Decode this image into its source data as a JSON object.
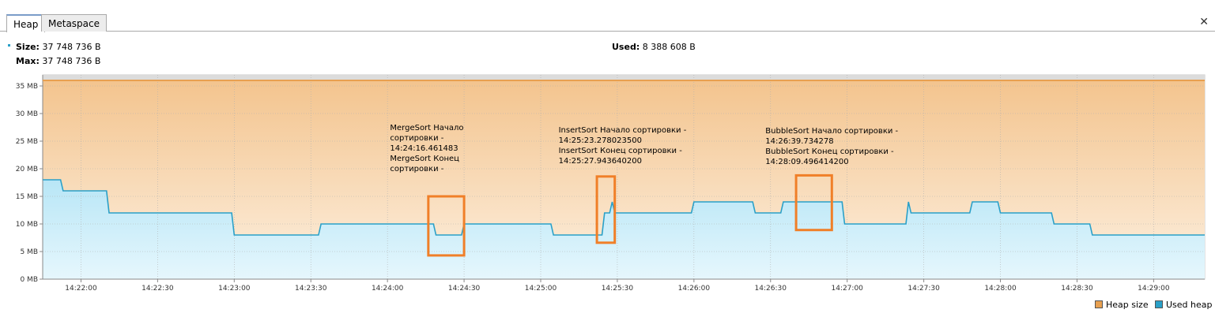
{
  "tabs": [
    {
      "label": "Heap",
      "active": true
    },
    {
      "label": "Metaspace",
      "active": false
    }
  ],
  "close_icon": "close-icon",
  "info": {
    "size_label": "Size:",
    "size_value": "37 748 736 B",
    "max_label": "Max:",
    "max_value": "37 748 736 B",
    "used_label": "Used:",
    "used_value": "8 388 608 B"
  },
  "legend": {
    "heap_size": "Heap size",
    "used_heap": "Used heap"
  },
  "colors": {
    "heap_size": "#e8a050",
    "used_heap": "#2aa0c8",
    "annotation_box": "#f07f28"
  },
  "chart_data": {
    "type": "area",
    "x_unit": "seconds",
    "y_unit": "MB",
    "xlim": [
      "14:21:45",
      "14:29:20"
    ],
    "ylim": [
      0,
      37
    ],
    "y_ticks": [
      {
        "v": 0,
        "label": "0 MB"
      },
      {
        "v": 5,
        "label": "5 MB"
      },
      {
        "v": 10,
        "label": "10 MB"
      },
      {
        "v": 15,
        "label": "15 MB"
      },
      {
        "v": 20,
        "label": "20 MB"
      },
      {
        "v": 25,
        "label": "25 MB"
      },
      {
        "v": 30,
        "label": "30 MB"
      },
      {
        "v": 35,
        "label": "35 MB"
      }
    ],
    "x_ticks": [
      "14:22:00",
      "14:22:30",
      "14:23:00",
      "14:23:30",
      "14:24:00",
      "14:24:30",
      "14:25:00",
      "14:25:30",
      "14:26:00",
      "14:26:30",
      "14:27:00",
      "14:27:30",
      "14:28:00",
      "14:28:30",
      "14:29:00"
    ],
    "grid": true,
    "legend_position": "bottom-right",
    "series": [
      {
        "name": "Heap size",
        "x": [
          "14:21:45",
          "14:29:20"
        ],
        "y": [
          36,
          36
        ]
      },
      {
        "name": "Used heap",
        "x": [
          "14:21:45",
          "14:21:52",
          "14:21:53",
          "14:22:10",
          "14:22:11",
          "14:22:28",
          "14:22:29",
          "14:22:59",
          "14:23:00",
          "14:23:33",
          "14:23:34",
          "14:24:18",
          "14:24:19",
          "14:24:29",
          "14:24:30",
          "14:25:04",
          "14:25:05",
          "14:25:24",
          "14:25:25",
          "14:25:27",
          "14:25:28",
          "14:25:29",
          "14:25:59",
          "14:26:00",
          "14:26:23",
          "14:26:24",
          "14:26:34",
          "14:26:35",
          "14:26:58",
          "14:26:59",
          "14:27:23",
          "14:27:24",
          "14:27:25",
          "14:27:48",
          "14:27:49",
          "14:27:59",
          "14:28:00",
          "14:28:20",
          "14:28:21",
          "14:28:35",
          "14:28:36",
          "14:29:20"
        ],
        "y": [
          18,
          18,
          16,
          16,
          12,
          12,
          12,
          12,
          8,
          8,
          10,
          10,
          8,
          8,
          10,
          10,
          8,
          8,
          12,
          12,
          14,
          12,
          12,
          14,
          14,
          12,
          12,
          14,
          14,
          10,
          10,
          14,
          12,
          12,
          14,
          14,
          12,
          12,
          10,
          10,
          8,
          8
        ]
      }
    ],
    "annotations": [
      {
        "lines": [
          "MergeSort Начало",
          "сортировки -",
          "14:24:16.461483",
          "MergeSort Конец",
          "сортировки -"
        ],
        "anchor_x": "14:24:01",
        "anchor_y": 27,
        "box_x": [
          "14:24:16",
          "14:24:30"
        ],
        "box_y": [
          4.3,
          15
        ]
      },
      {
        "lines": [
          "InsertSort Начало сортировки -",
          "14:25:23.278023500",
          "InsertSort Конец сортировки -",
          "14:25:27.943640200"
        ],
        "anchor_x": "14:25:07",
        "anchor_y": 26.6,
        "box_x": [
          "14:25:22",
          "14:25:29"
        ],
        "box_y": [
          6.6,
          18.6
        ]
      },
      {
        "lines": [
          "BubbleSort Начало сортировки -",
          "14:26:39.734278",
          "BubbleSort Конец сортировки -",
          "14:28:09.496414200"
        ],
        "anchor_x": "14:26:28",
        "anchor_y": 26.4,
        "box_x": [
          "14:26:40",
          "14:26:54"
        ],
        "box_y": [
          8.9,
          18.8
        ]
      }
    ]
  }
}
